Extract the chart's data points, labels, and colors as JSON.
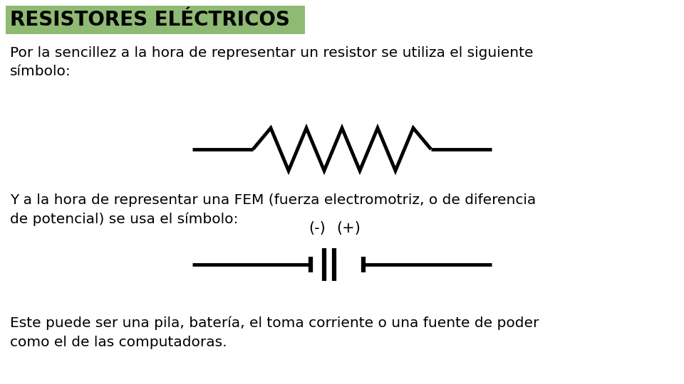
{
  "title": "RESISTORES ELÉCTRICOS",
  "title_bg": "#8fba74",
  "title_color": "#000000",
  "title_fontsize": 20,
  "bg_color": "#ffffff",
  "text1": "Por la sencillez a la hora de representar un resistor se utiliza el siguiente\nsímbolo:",
  "text2": "Y a la hora de representar una FEM (fuerza electromotriz, o de diferencia\nde potencial) se usa el símbolo:",
  "text3": "Este puede ser una pila, batería, el toma corriente o una fuente de poder\ncomo el de las computadoras.",
  "text_fontsize": 14.5,
  "minus_label": "(-)",
  "plus_label": "(+)"
}
